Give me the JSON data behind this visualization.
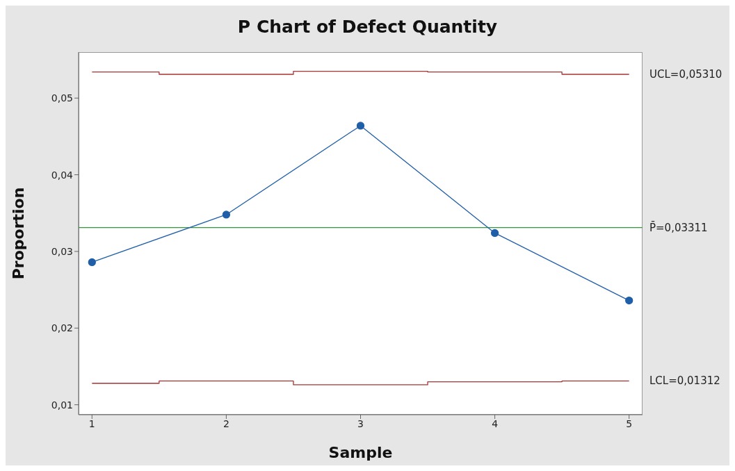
{
  "chart_data": {
    "type": "line",
    "title": "P Chart of Defect Quantity",
    "xlabel": "Sample",
    "ylabel": "Proportion",
    "x": [
      1,
      2,
      3,
      4,
      5
    ],
    "series": [
      {
        "type": "step",
        "name": "UCL=0,05310",
        "color": "#a83232",
        "marker": "none",
        "values": [
          0.0534,
          0.0531,
          0.0535,
          0.0534,
          0.0531
        ]
      },
      {
        "type": "step",
        "name": "LCL=0,01312",
        "color": "#a83232",
        "marker": "none",
        "values": [
          0.0128,
          0.0131,
          0.0126,
          0.013,
          0.0131
        ]
      },
      {
        "color": "#1f5fa8",
        "marker": "circle",
        "values": [
          0.0286,
          0.0348,
          0.0464,
          0.0324,
          0.0236
        ]
      }
    ],
    "ref_lines": [
      {
        "axis": "y",
        "value": 0.03311,
        "label": "P̄=0,03311",
        "color": "#2e9a3a"
      }
    ],
    "xlim": [
      0.9,
      5.1
    ],
    "xticks": [
      1,
      2,
      3,
      4,
      5
    ],
    "ylim": [
      0.0087,
      0.056
    ],
    "yticks": [
      {
        "value": 0.01,
        "label": "0,01"
      },
      {
        "value": 0.02,
        "label": "0,02"
      },
      {
        "value": 0.03,
        "label": "0,03"
      },
      {
        "value": 0.04,
        "label": "0,04"
      },
      {
        "value": 0.05,
        "label": "0,05"
      }
    ],
    "grid": false
  }
}
